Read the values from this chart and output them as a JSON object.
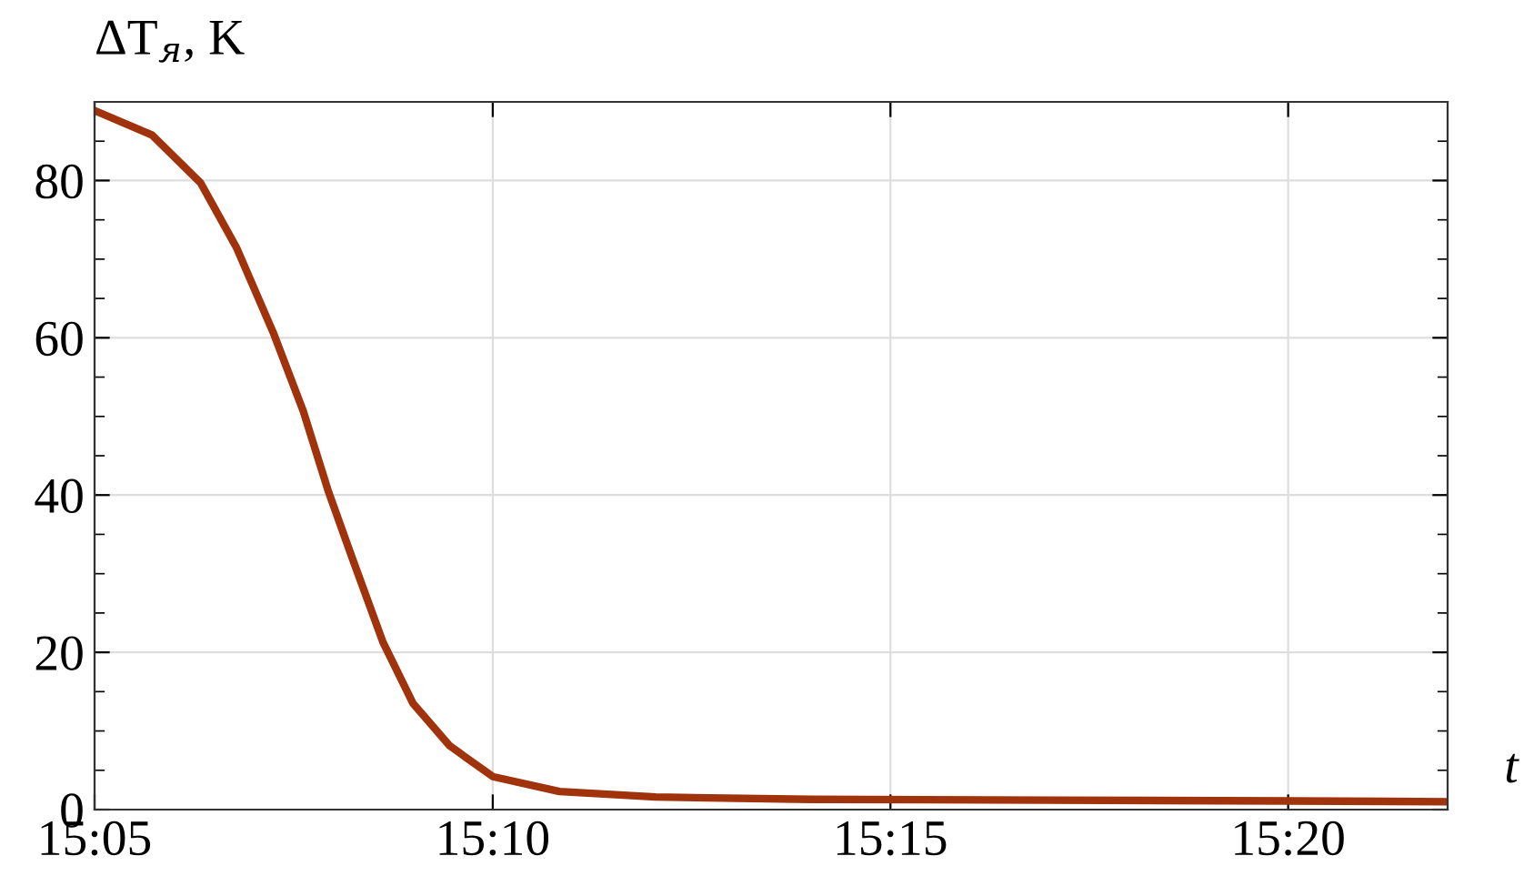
{
  "chart_data": {
    "type": "line",
    "ylabel": "ΔT$_{я}$, K",
    "xlabel": "t",
    "x": [
      15.0833,
      15.0953,
      15.1055,
      15.113,
      15.1207,
      15.127,
      15.1322,
      15.1372,
      15.1437,
      15.15,
      15.1577,
      15.1667,
      15.1807,
      15.2008,
      15.2333,
      15.2833,
      15.3333,
      15.3667
    ],
    "series": [
      {
        "color": "#a0320c",
        "values": [
          88.9,
          85.8,
          79.7,
          71.5,
          60.7,
          50.7,
          40.6,
          32.1,
          21.3,
          13.5,
          8.1,
          4.2,
          2.3,
          1.6,
          1.3,
          1.2,
          1.1,
          1.0
        ]
      }
    ],
    "xlim": [
      15.0833,
      15.3667
    ],
    "ylim": [
      0,
      90
    ],
    "xticks": [
      {
        "value": 15.0833,
        "label": "15:05"
      },
      {
        "value": 15.1667,
        "label": "15:10"
      },
      {
        "value": 15.25,
        "label": "15:15"
      },
      {
        "value": 15.3333,
        "label": "15:20"
      }
    ],
    "yticks": [
      0,
      20,
      40,
      60,
      80
    ],
    "grid": true,
    "marker": "none",
    "line_style": "solid",
    "legend": false
  }
}
